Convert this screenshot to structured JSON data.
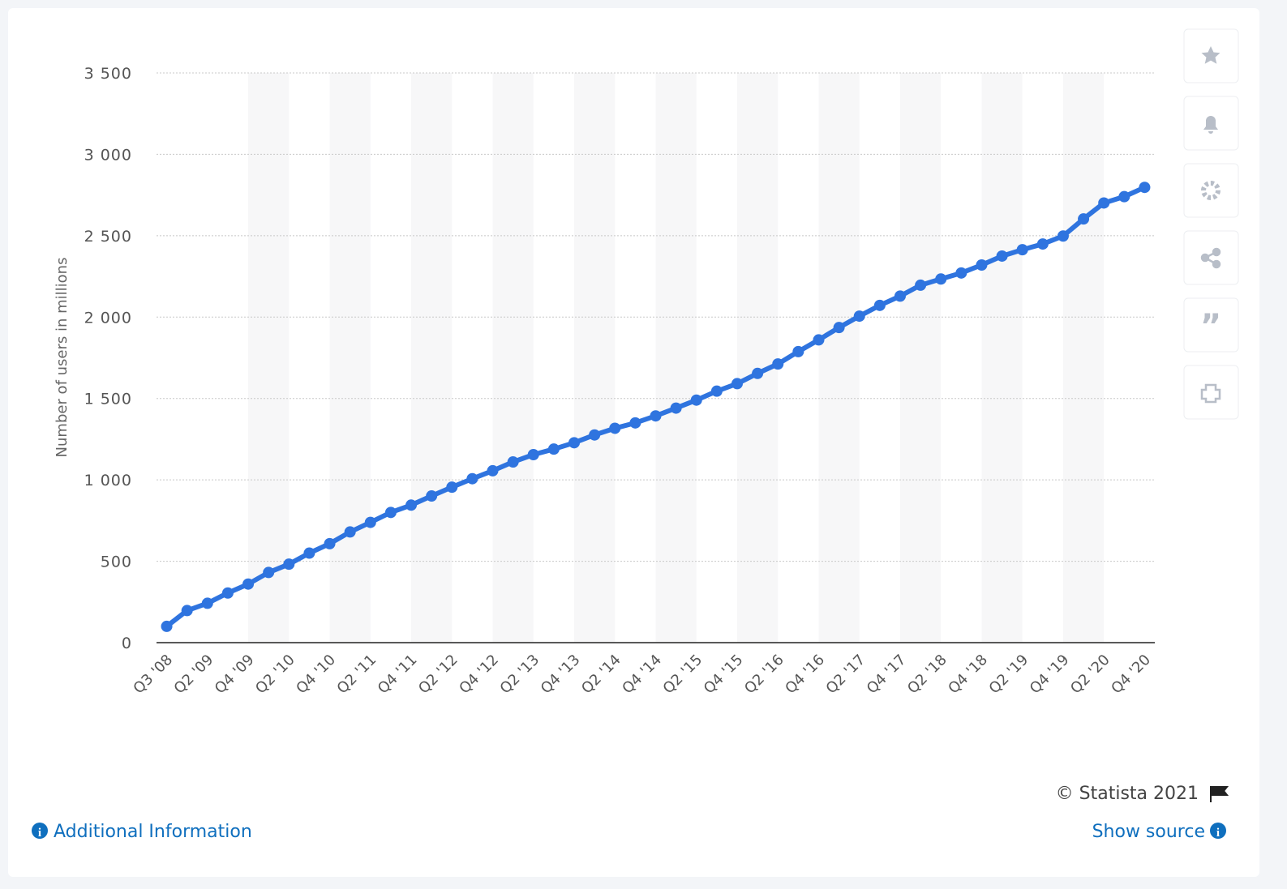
{
  "chart_data": {
    "type": "line",
    "y_label": "Number of users in millions",
    "categories": [
      "Q3 '08",
      null,
      "Q2 '09",
      null,
      "Q4 '09",
      null,
      "Q2 '10",
      null,
      "Q4 '10",
      null,
      "Q2 '11",
      null,
      "Q4 '11",
      null,
      "Q2 '12",
      null,
      "Q4 '12",
      null,
      "Q2 '13",
      null,
      "Q4 '13",
      null,
      "Q2 '14",
      null,
      "Q4 '14",
      null,
      "Q2 '15",
      null,
      "Q4 '15",
      null,
      "Q2 '16",
      null,
      "Q4 '16",
      null,
      "Q2 '17",
      null,
      "Q4 '17",
      null,
      "Q2 '18",
      null,
      "Q4 '18",
      null,
      "Q2 '19",
      null,
      "Q4 '19",
      null,
      "Q2 '20",
      null,
      "Q4 '20"
    ],
    "series": [
      {
        "color": "#2f74df",
        "values": [
          100,
          197,
          242,
          305,
          360,
          431,
          482,
          550,
          608,
          680,
          739,
          800,
          845,
          901,
          955,
          1007,
          1056,
          1110,
          1155,
          1189,
          1228,
          1276,
          1317,
          1350,
          1393,
          1441,
          1490,
          1545,
          1591,
          1654,
          1712,
          1788,
          1860,
          1936,
          2006,
          2072,
          2129,
          2196,
          2234,
          2271,
          2320,
          2375,
          2414,
          2449,
          2498,
          2603,
          2701,
          2740,
          2797
        ]
      }
    ],
    "ylim": [
      0,
      3500
    ],
    "yticks": [
      0,
      500,
      {
        "value": 1000,
        "label": "1 000"
      },
      {
        "value": 1500,
        "label": "1 500"
      },
      {
        "value": 2000,
        "label": "2 000"
      },
      {
        "value": 2500,
        "label": "2 500"
      },
      {
        "value": 3000,
        "label": "3 000"
      },
      {
        "value": 3500,
        "label": "3 500"
      }
    ],
    "grid": true
  },
  "footer": {
    "copyright": "© Statista 2021",
    "additional_information": "Additional Information",
    "show_source": "Show source"
  }
}
